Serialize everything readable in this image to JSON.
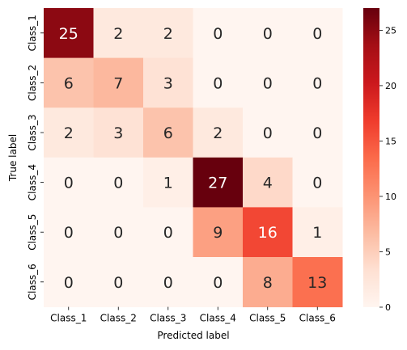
{
  "chart_data": {
    "type": "heatmap",
    "xlabel": "Predicted label",
    "ylabel": "True label",
    "x_categories": [
      "Class_1",
      "Class_2",
      "Class_3",
      "Class_4",
      "Class_5",
      "Class_6"
    ],
    "y_categories": [
      "Class_1",
      "Class_2",
      "Class_3",
      "Class_4",
      "Class_5",
      "Class_6"
    ],
    "values": [
      [
        25,
        2,
        2,
        0,
        0,
        0
      ],
      [
        6,
        7,
        3,
        0,
        0,
        0
      ],
      [
        2,
        3,
        6,
        2,
        0,
        0
      ],
      [
        0,
        0,
        1,
        27,
        4,
        0
      ],
      [
        0,
        0,
        0,
        9,
        16,
        1
      ],
      [
        0,
        0,
        0,
        0,
        8,
        13
      ]
    ],
    "colormap": "Reds",
    "colorbar": {
      "vmin": 0,
      "vmax": 27,
      "ticks": [
        0,
        5,
        10,
        15,
        20,
        25
      ]
    }
  }
}
